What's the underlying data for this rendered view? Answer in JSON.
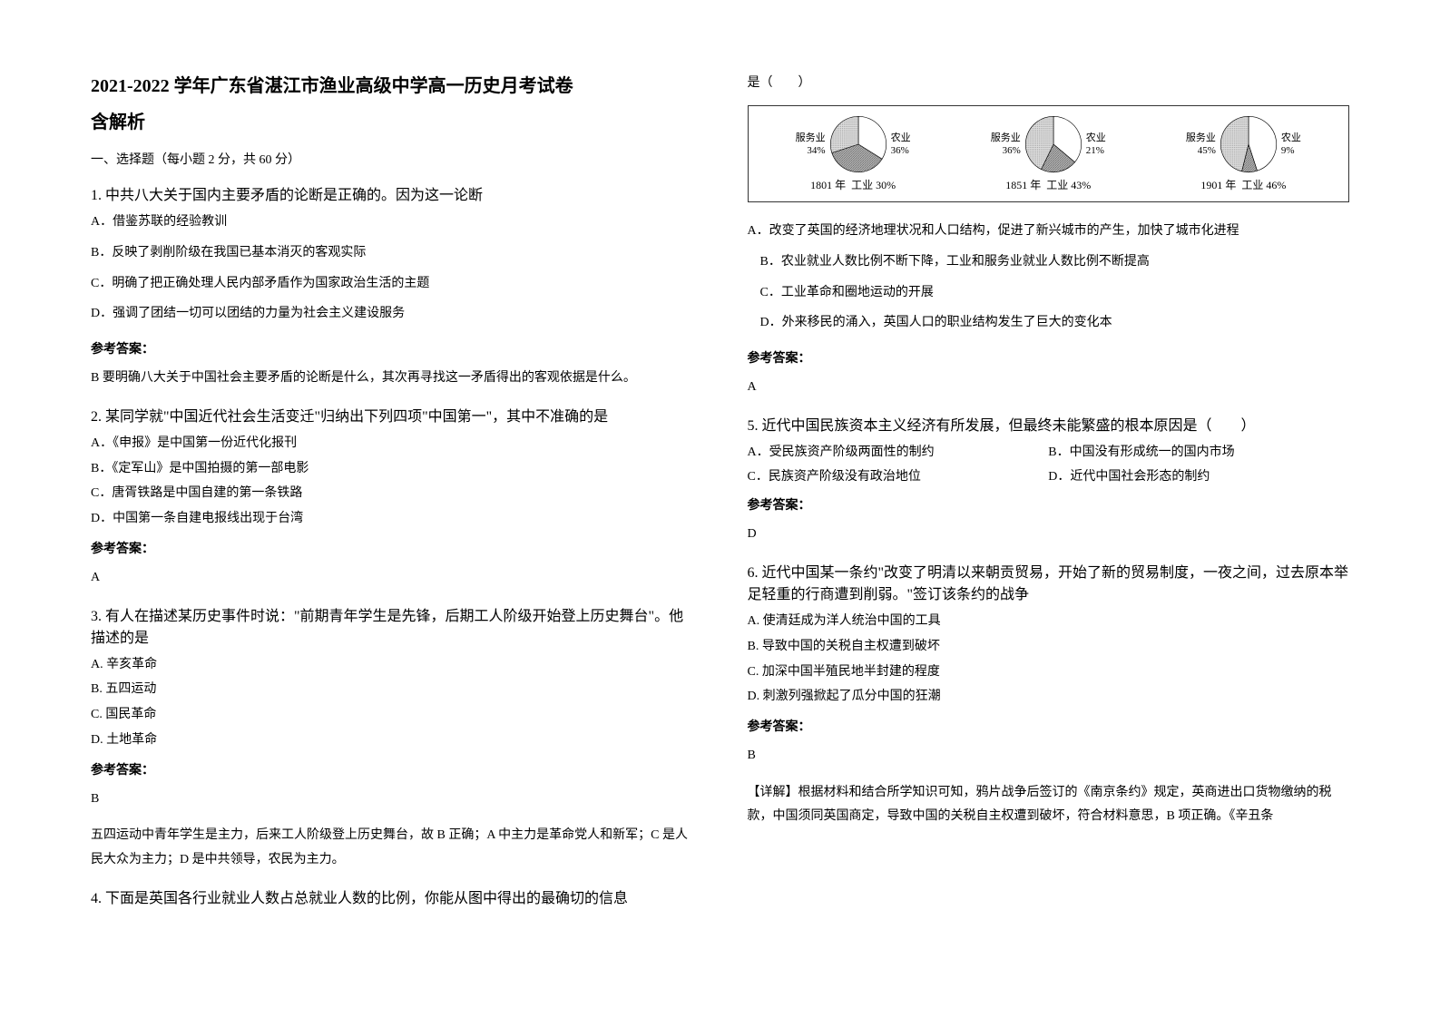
{
  "header": {
    "title_line1": "2021-2022 学年广东省湛江市渔业高级中学高一历史月考试卷",
    "title_line2": "含解析"
  },
  "section1": {
    "header": "一、选择题（每小题 2 分，共 60 分）"
  },
  "q1": {
    "text": "1. 中共八大关于国内主要矛盾的论断是正确的。因为这一论断",
    "optA": "A．借鉴苏联的经验教训",
    "optB": "B．反映了剥削阶级在我国已基本消灭的客观实际",
    "optC": "C．明确了把正确处理人民内部矛盾作为国家政治生活的主题",
    "optD": "D．强调了团结一切可以团结的力量为社会主义建设服务",
    "answer_label": "参考答案：",
    "answer": "B 要明确八大关于中国社会主要矛盾的论断是什么，其次再寻找这一矛盾得出的客观依据是什么。"
  },
  "q2": {
    "text": "2. 某同学就\"中国近代社会生活变迁\"归纳出下列四项\"中国第一\"，其中不准确的是",
    "optA": "A．《申报》是中国第一份近代化报刊",
    "optB": "B．《定军山》是中国拍摄的第一部电影",
    "optC": "C．唐胥铁路是中国自建的第一条铁路",
    "optD": "D．中国第一条自建电报线出现于台湾",
    "answer_label": "参考答案：",
    "answer": "A"
  },
  "q3": {
    "text": "3. 有人在描述某历史事件时说：\"前期青年学生是先锋，后期工人阶级开始登上历史舞台\"。他描述的是",
    "optA": "A. 辛亥革命",
    "optB": "B. 五四运动",
    "optC": "C. 国民革命",
    "optD": "D. 土地革命",
    "answer_label": "参考答案：",
    "answer": "B",
    "explanation": "五四运动中青年学生是主力，后来工人阶级登上历史舞台，故 B 正确；A 中主力是革命党人和新军；C 是人民大众为主力；D 是中共领导，农民为主力。"
  },
  "q4": {
    "text": "4. 下面是英国各行业就业人数占总就业人数的比例，你能从图中得出的最确切的信息",
    "continuation": "是（　　）",
    "optA": "A．改变了英国的经济地理状况和人口结构，促进了新兴城市的产生，加快了城市化进程",
    "optB": "B．农业就业人数比例不断下降，工业和服务业就业人数比例不断提高",
    "optC": "C．工业革命和圈地运动的开展",
    "optD": "D．外来移民的涌入，英国人口的职业结构发生了巨大的变化本",
    "answer_label": "参考答案：",
    "answer": "A"
  },
  "chart": {
    "pies": [
      {
        "year": "1801 年",
        "slices": [
          {
            "label": "服务业",
            "value": "34%",
            "color": "#ffffff"
          },
          {
            "label": "农业",
            "value": "36%",
            "color": "#888888"
          },
          {
            "label": "工业",
            "value": "30%",
            "color": "#cccccc"
          }
        ],
        "service_deg": 122,
        "agri_deg": 130
      },
      {
        "year": "1851 年",
        "slices": [
          {
            "label": "服务业",
            "value": "36%",
            "color": "#ffffff"
          },
          {
            "label": "农业",
            "value": "21%",
            "color": "#888888"
          },
          {
            "label": "工业",
            "value": "43%",
            "color": "#cccccc"
          }
        ],
        "service_deg": 130,
        "agri_deg": 76
      },
      {
        "year": "1901 年",
        "slices": [
          {
            "label": "服务业",
            "value": "45%",
            "color": "#ffffff"
          },
          {
            "label": "农业",
            "value": "9%",
            "color": "#888888"
          },
          {
            "label": "工业",
            "value": "46%",
            "color": "#cccccc"
          }
        ],
        "service_deg": 162,
        "agri_deg": 32
      }
    ]
  },
  "q5": {
    "text": "5. 近代中国民族资本主义经济有所发展，但最终未能繁盛的根本原因是（　　）",
    "optA": "A．受民族资产阶级两面性的制约",
    "optB": "B．中国没有形成统一的国内市场",
    "optC": "C．民族资产阶级没有政治地位",
    "optD": "D．近代中国社会形态的制约",
    "answer_label": "参考答案：",
    "answer": "D"
  },
  "q6": {
    "text": "6. 近代中国某一条约\"改变了明清以来朝贡贸易，开始了新的贸易制度，一夜之间，过去原本举足轻重的行商遭到削弱。\"签订该条约的战争",
    "optA": "A. 使清廷成为洋人统治中国的工具",
    "optB": "B. 导致中国的关税自主权遭到破坏",
    "optC": "C. 加深中国半殖民地半封建的程度",
    "optD": "D. 刺激列强掀起了瓜分中国的狂潮",
    "answer_label": "参考答案：",
    "answer": "B",
    "explanation": "【详解】根据材料和结合所学知识可知，鸦片战争后签订的《南京条约》规定，英商进出口货物缴纳的税款，中国须同英国商定，导致中国的关税自主权遭到破坏，符合材料意思，B 项正确。《辛丑条"
  }
}
